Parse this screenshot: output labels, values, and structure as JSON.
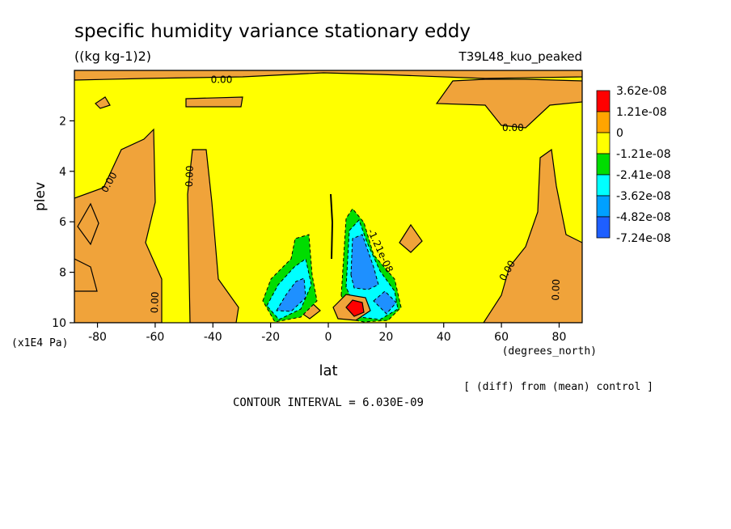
{
  "chart_data": {
    "type": "contour",
    "title": "specific humidity variance stationary eddy",
    "units": "((kg kg-1)2)",
    "run_label": "T39L48_kuo_peaked",
    "xlabel": "lat",
    "xunits": "(degrees_north)",
    "ylabel": "plev",
    "yunits": "(x1E4 Pa)",
    "xlim": [
      -88,
      88
    ],
    "ylim": [
      10,
      0
    ],
    "xticks": [
      -80,
      -60,
      -40,
      -20,
      0,
      20,
      40,
      60,
      80
    ],
    "yticks": [
      2,
      4,
      6,
      8,
      10
    ],
    "note": "[ (diff) from (mean) control ]",
    "contour_interval": "CONTOUR INTERVAL = 6.030E-09",
    "contour_labels": [
      {
        "text": "0.00",
        "lat": -37,
        "plev": 0.5,
        "rotate": 0
      },
      {
        "text": "0.00",
        "lat": -75,
        "plev": 4.5,
        "rotate": -60
      },
      {
        "text": "0.00",
        "lat": -47,
        "plev": 4.2,
        "rotate": -88
      },
      {
        "text": "0.00",
        "lat": 64,
        "plev": 2.4,
        "rotate": 0
      },
      {
        "text": "0.00",
        "lat": -59,
        "plev": 9.2,
        "rotate": -88
      },
      {
        "text": "0.00",
        "lat": 63,
        "plev": 8.0,
        "rotate": -60
      },
      {
        "text": "0.00",
        "lat": 80,
        "plev": 8.7,
        "rotate": -88
      },
      {
        "text": "-1.21e-08",
        "lat": 17,
        "plev": 7.2,
        "rotate": 65
      }
    ],
    "legend": {
      "levels": [
        "3.62e-08",
        "1.21e-08",
        "0",
        "-1.21e-08",
        "-2.41e-08",
        "-3.62e-08",
        "-4.82e-08",
        "-7.24e-08"
      ],
      "colors": [
        "#ff0000",
        "#ffa500",
        "#ffff00",
        "#00dd00",
        "#00ffff",
        "#00a0ff",
        "#1e5fff"
      ]
    },
    "palette": {
      "background": "#ffff00",
      "positive": "#f0a33a",
      "neg1": "#00dd00",
      "neg2": "#00ffff",
      "neg3": "#1e90ff",
      "peak": "#ff0000"
    }
  }
}
